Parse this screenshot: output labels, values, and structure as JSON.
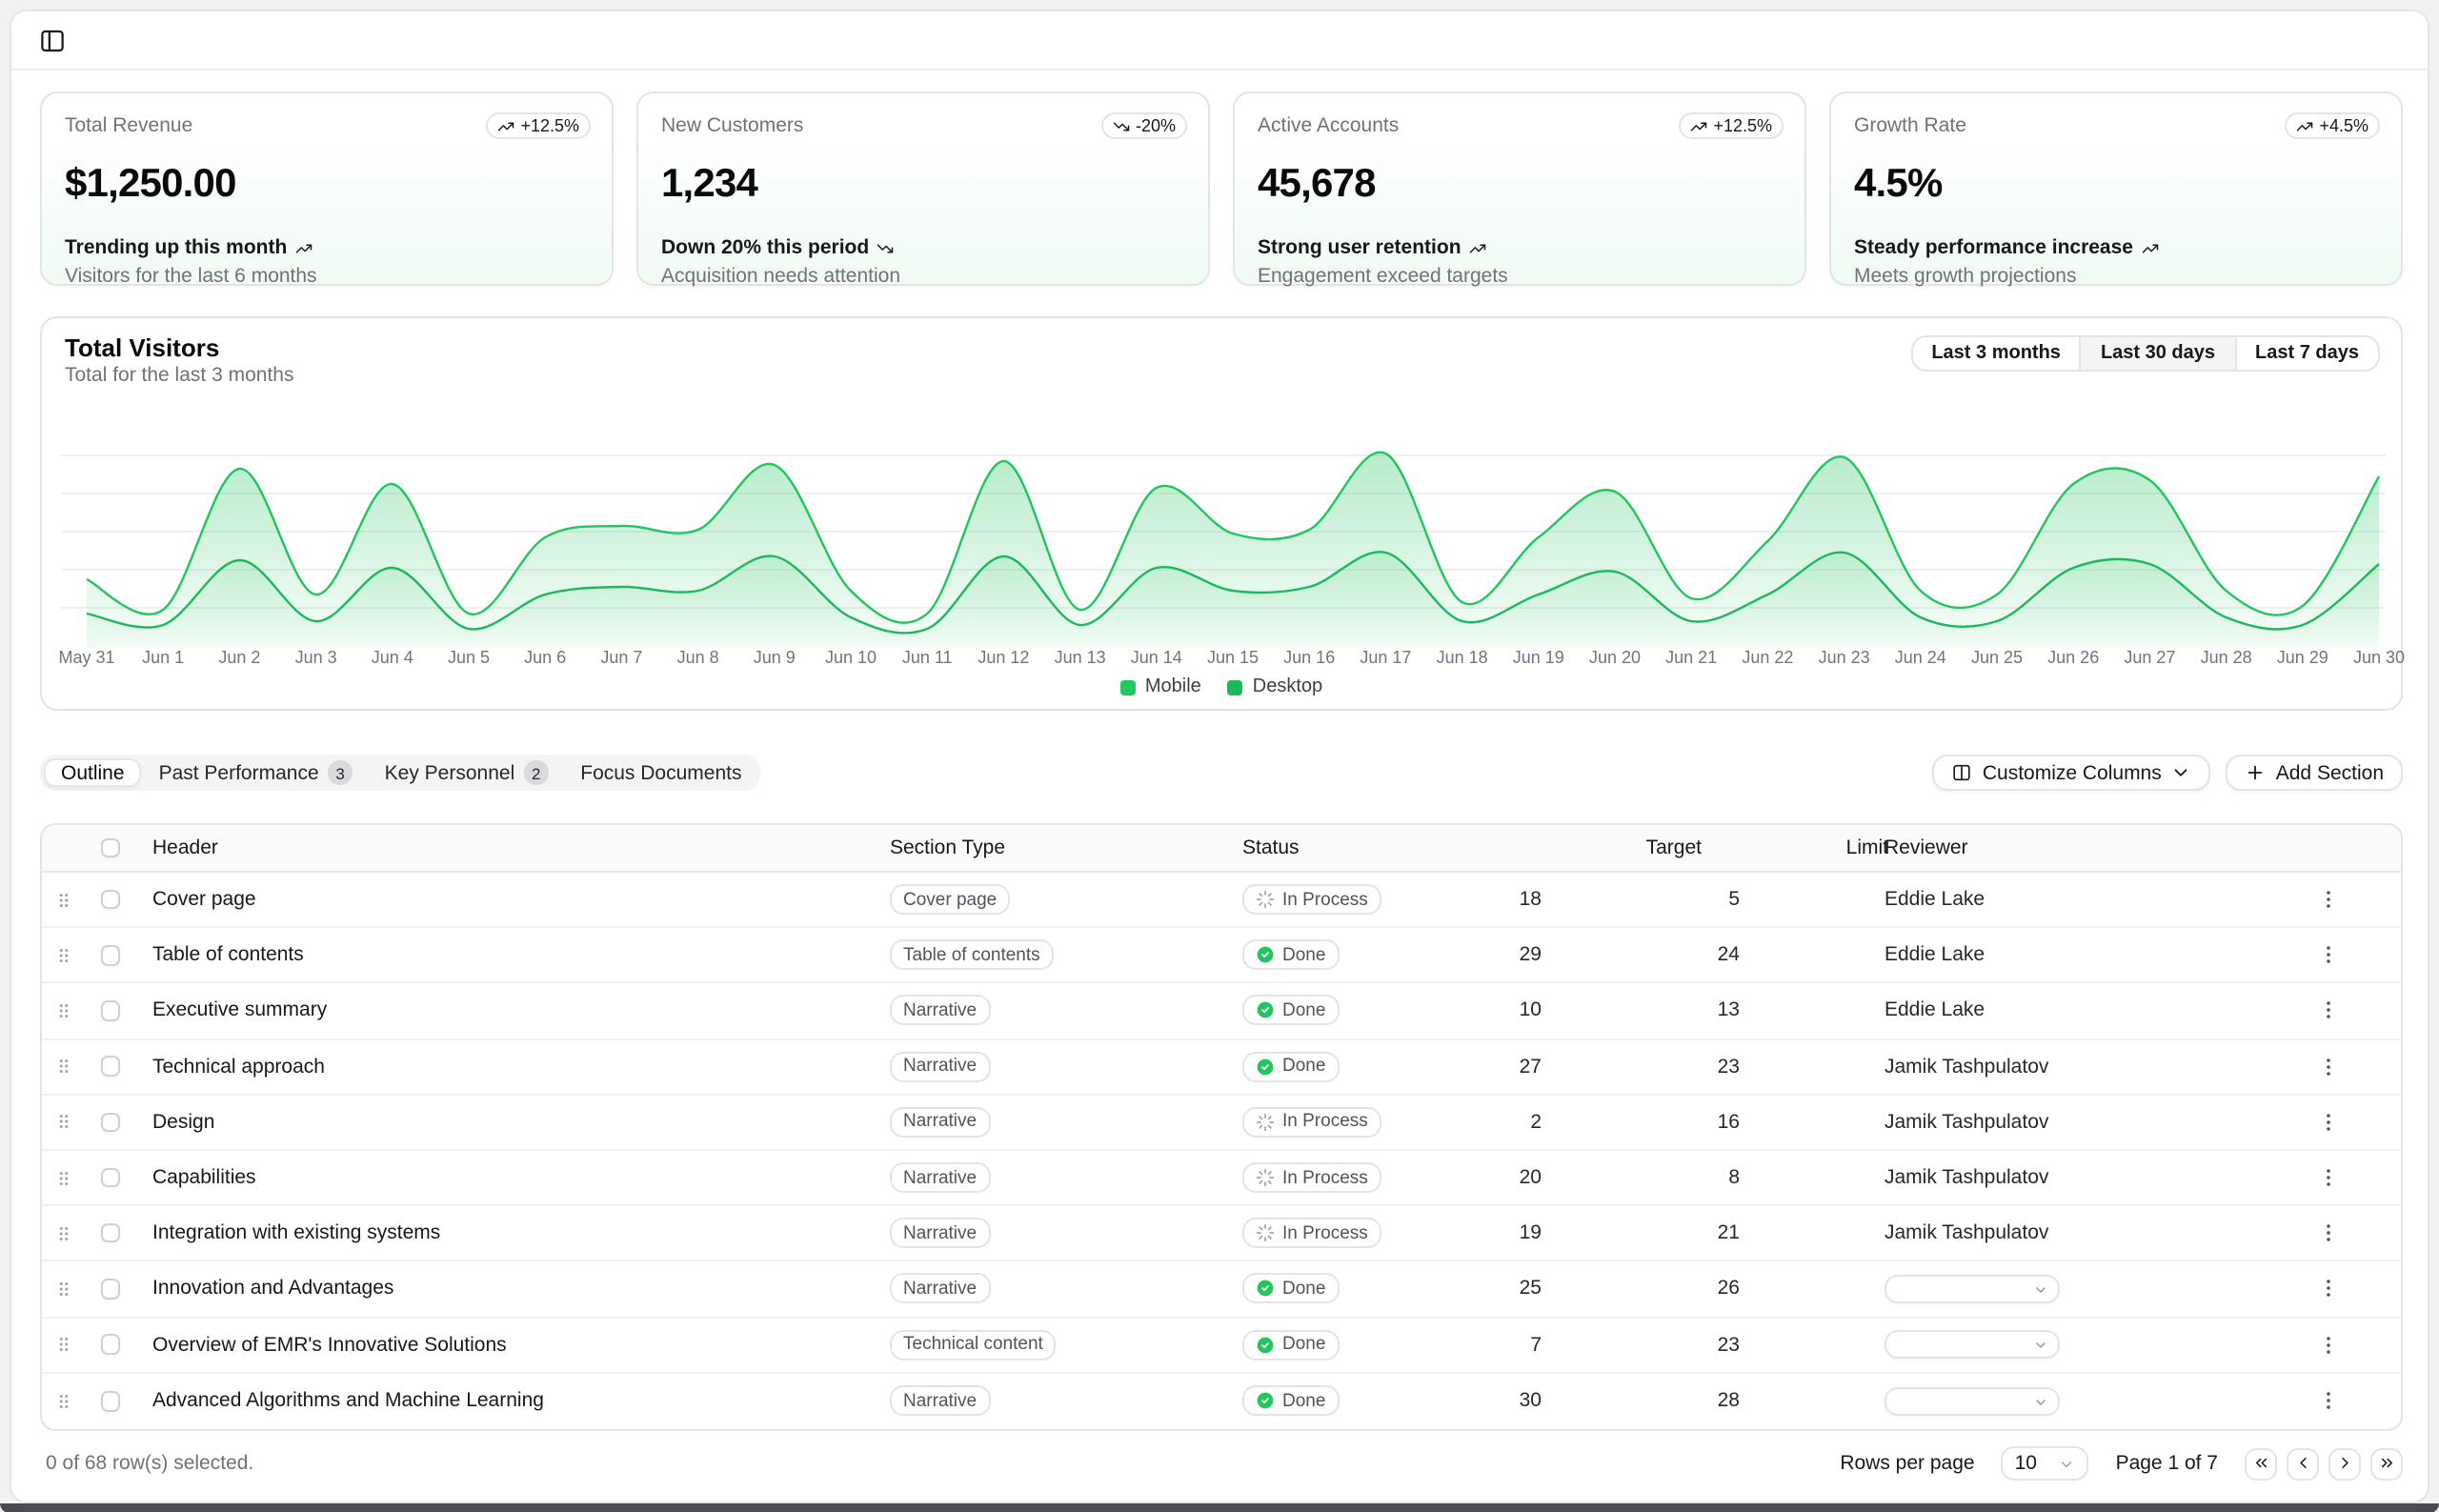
{
  "topbar": {
    "sidebar_toggle_icon": "panel-left-icon"
  },
  "stat_cards": [
    {
      "title": "Total Revenue",
      "value": "$1,250.00",
      "badge": "+12.5%",
      "trend": "up",
      "footer_line1": "Trending up this month",
      "footer_line2": "Visitors for the last 6 months"
    },
    {
      "title": "New Customers",
      "value": "1,234",
      "badge": "-20%",
      "trend": "down",
      "footer_line1": "Down 20% this period",
      "footer_line2": "Acquisition needs attention"
    },
    {
      "title": "Active Accounts",
      "value": "45,678",
      "badge": "+12.5%",
      "trend": "up",
      "footer_line1": "Strong user retention",
      "footer_line2": "Engagement exceed targets"
    },
    {
      "title": "Growth Rate",
      "value": "4.5%",
      "badge": "+4.5%",
      "trend": "up",
      "footer_line1": "Steady performance increase",
      "footer_line2": "Meets growth projections"
    }
  ],
  "chart": {
    "title": "Total Visitors",
    "subtitle": "Total for the last 3 months",
    "range_options": [
      {
        "label": "Last 3 months",
        "selected": false
      },
      {
        "label": "Last 30 days",
        "selected": true
      },
      {
        "label": "Last 7 days",
        "selected": false
      }
    ],
    "legend": [
      {
        "label": "Mobile",
        "color": "#22c55e"
      },
      {
        "label": "Desktop",
        "color": "#1eb85c"
      }
    ]
  },
  "chart_data": {
    "type": "area",
    "title": "Total Visitors",
    "xlabel": "date",
    "ylabel": "visitors",
    "ylim": [
      0,
      550
    ],
    "grid": "horizontal",
    "legend_position": "bottom",
    "stacked": false,
    "categories": [
      "May 31",
      "Jun 1",
      "Jun 2",
      "Jun 3",
      "Jun 4",
      "Jun 5",
      "Jun 6",
      "Jun 7",
      "Jun 8",
      "Jun 9",
      "Jun 10",
      "Jun 11",
      "Jun 12",
      "Jun 13",
      "Jun 14",
      "Jun 15",
      "Jun 16",
      "Jun 17",
      "Jun 18",
      "Jun 19",
      "Jun 20",
      "Jun 21",
      "Jun 22",
      "Jun 23",
      "Jun 24",
      "Jun 25",
      "Jun 26",
      "Jun 27",
      "Jun 28",
      "Jun 29",
      "Jun 30"
    ],
    "series": [
      {
        "name": "Mobile",
        "color": "#22c55e",
        "values": [
          90,
          60,
          230,
          70,
          210,
          50,
          140,
          160,
          150,
          240,
          80,
          50,
          240,
          60,
          210,
          150,
          160,
          250,
          70,
          140,
          200,
          70,
          140,
          250,
          80,
          70,
          210,
          220,
          80,
          60,
          220
        ]
      },
      {
        "name": "Desktop",
        "color": "#1eb85c",
        "values": [
          180,
          100,
          470,
          140,
          430,
          90,
          290,
          320,
          310,
          480,
          150,
          90,
          490,
          100,
          420,
          300,
          310,
          510,
          120,
          290,
          410,
          130,
          280,
          500,
          150,
          140,
          430,
          440,
          150,
          110,
          450
        ]
      }
    ]
  },
  "toolbar": {
    "tabs": [
      {
        "label": "Outline",
        "badge": null,
        "active": true
      },
      {
        "label": "Past Performance",
        "badge": "3",
        "active": false
      },
      {
        "label": "Key Personnel",
        "badge": "2",
        "active": false
      },
      {
        "label": "Focus Documents",
        "badge": null,
        "active": false
      }
    ],
    "customize_columns_label": "Customize Columns",
    "add_section_label": "Add Section"
  },
  "table": {
    "columns": [
      "Header",
      "Section Type",
      "Status",
      "Target",
      "Limit",
      "Reviewer"
    ],
    "rows": [
      {
        "header": "Cover page",
        "type": "Cover page",
        "status": "In Process",
        "target": "18",
        "limit": "5",
        "reviewer": "Eddie Lake",
        "assigned": true
      },
      {
        "header": "Table of contents",
        "type": "Table of contents",
        "status": "Done",
        "target": "29",
        "limit": "24",
        "reviewer": "Eddie Lake",
        "assigned": true
      },
      {
        "header": "Executive summary",
        "type": "Narrative",
        "status": "Done",
        "target": "10",
        "limit": "13",
        "reviewer": "Eddie Lake",
        "assigned": true
      },
      {
        "header": "Technical approach",
        "type": "Narrative",
        "status": "Done",
        "target": "27",
        "limit": "23",
        "reviewer": "Jamik Tashpulatov",
        "assigned": true
      },
      {
        "header": "Design",
        "type": "Narrative",
        "status": "In Process",
        "target": "2",
        "limit": "16",
        "reviewer": "Jamik Tashpulatov",
        "assigned": true
      },
      {
        "header": "Capabilities",
        "type": "Narrative",
        "status": "In Process",
        "target": "20",
        "limit": "8",
        "reviewer": "Jamik Tashpulatov",
        "assigned": true
      },
      {
        "header": "Integration with existing systems",
        "type": "Narrative",
        "status": "In Process",
        "target": "19",
        "limit": "21",
        "reviewer": "Jamik Tashpulatov",
        "assigned": true
      },
      {
        "header": "Innovation and Advantages",
        "type": "Narrative",
        "status": "Done",
        "target": "25",
        "limit": "26",
        "reviewer": "",
        "assigned": false
      },
      {
        "header": "Overview of EMR's Innovative Solutions",
        "type": "Technical content",
        "status": "Done",
        "target": "7",
        "limit": "23",
        "reviewer": "",
        "assigned": false
      },
      {
        "header": "Advanced Algorithms and Machine Learning",
        "type": "Narrative",
        "status": "Done",
        "target": "30",
        "limit": "28",
        "reviewer": "",
        "assigned": false
      }
    ]
  },
  "footer": {
    "selection_text": "0 of 68 row(s) selected.",
    "rows_per_page_label": "Rows per page",
    "rows_per_page_value": "10",
    "page_text": "Page 1 of 7"
  },
  "colors": {
    "accent_green": "#22c55e",
    "border": "#e4e4e7",
    "muted_text": "#71717a"
  }
}
